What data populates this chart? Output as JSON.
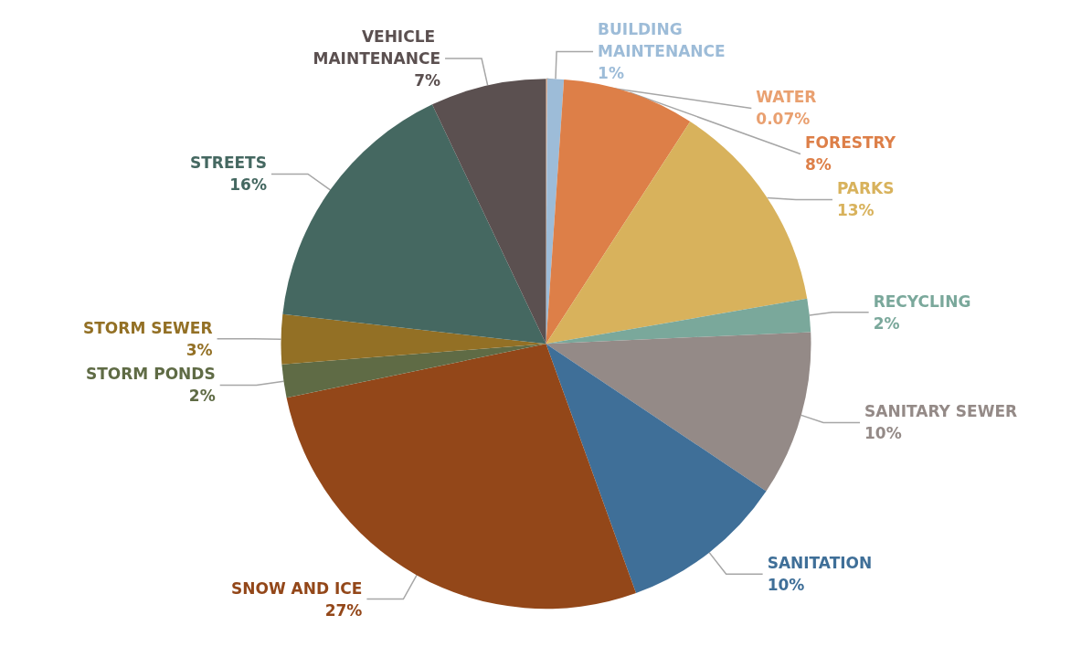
{
  "chart_data": {
    "type": "pie",
    "categories": [
      "WATER",
      "BUILDING MAINTENANCE",
      "FORESTRY",
      "PARKS",
      "RECYCLING",
      "SANITARY SEWER",
      "SANITATION",
      "SNOW AND ICE",
      "STORM PONDS",
      "STORM SEWER",
      "STREETS",
      "VEHICLE MAINTENANCE"
    ],
    "values": [
      0.07,
      1,
      8,
      13,
      2,
      10,
      10,
      27,
      2,
      3,
      16,
      7
    ],
    "colors": [
      "#e9a070",
      "#9dbcd8",
      "#dd7f48",
      "#d8b25c",
      "#7aa89b",
      "#948a87",
      "#3f6f98",
      "#934719",
      "#5f6b45",
      "#937025",
      "#456861",
      "#5b5050"
    ],
    "value_labels": [
      "0.07%",
      "1%",
      "8%",
      "13%",
      "2%",
      "10%",
      "10%",
      "27%",
      "2%",
      "3%",
      "16%",
      "7%"
    ]
  }
}
